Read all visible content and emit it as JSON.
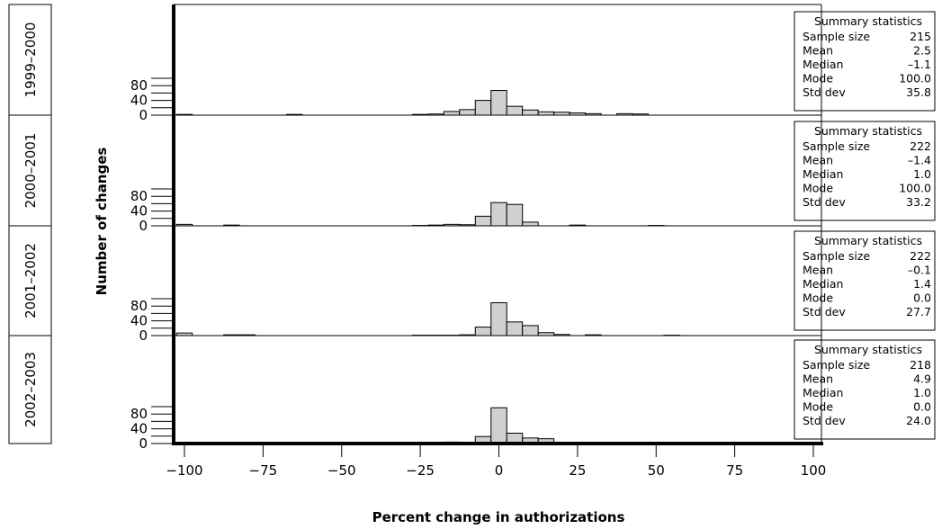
{
  "chart_data": {
    "type": "bar",
    "subtype": "stacked histogram panels",
    "xlabel": "Percent change in authorizations",
    "ylabel": "Number of changes",
    "xlim": [
      -105,
      105
    ],
    "ylim": [
      0,
      115
    ],
    "x_ticks": [
      -100,
      -75,
      -50,
      -25,
      0,
      25,
      50,
      75,
      100
    ],
    "x_tick_labels": [
      "−100",
      "−75",
      "−50",
      "−25",
      "0",
      "25",
      "50",
      "75",
      "100"
    ],
    "y_ticks": [
      0,
      40,
      80
    ],
    "y_minor_ticks": [
      20,
      60,
      100
    ],
    "bin_width": 5,
    "bar_color": "#d0d0d0",
    "bar_edge_color": "#000000",
    "grid": false,
    "panels": [
      {
        "label": "1999–2000",
        "bin_starts": [
          -102.5,
          -67.5,
          -27.5,
          -22.5,
          -17.5,
          -12.5,
          -7.5,
          -2.5,
          2.5,
          7.5,
          12.5,
          17.5,
          22.5,
          27.5,
          37.5,
          42.5
        ],
        "counts": [
          2,
          2,
          2,
          3,
          10,
          15,
          40,
          67,
          24,
          14,
          9,
          8,
          6,
          4,
          4,
          3
        ],
        "stats": {
          "title": "Summary statistics",
          "rows": [
            {
              "label": "Sample size",
              "value": "215"
            },
            {
              "label": "Mean",
              "value": "2.5"
            },
            {
              "label": "Median",
              "value": "–1.1"
            },
            {
              "label": "Mode",
              "value": "100.0"
            },
            {
              "label": "Std dev",
              "value": "35.8"
            }
          ]
        }
      },
      {
        "label": "2000–2001",
        "bin_starts": [
          -102.5,
          -87.5,
          -27.5,
          -22.5,
          -17.5,
          -12.5,
          -7.5,
          -2.5,
          2.5,
          7.5,
          22.5,
          47.5
        ],
        "counts": [
          4,
          2,
          1,
          2,
          4,
          3,
          26,
          63,
          58,
          10,
          2,
          1
        ],
        "stats": {
          "title": "Summary statistics",
          "rows": [
            {
              "label": "Sample size",
              "value": "222"
            },
            {
              "label": "Mean",
              "value": "–1.4"
            },
            {
              "label": "Median",
              "value": "1.0"
            },
            {
              "label": "Mode",
              "value": "100.0"
            },
            {
              "label": "Std dev",
              "value": "33.2"
            }
          ]
        }
      },
      {
        "label": "2001–2002",
        "bin_starts": [
          -102.5,
          -87.5,
          -82.5,
          -27.5,
          -22.5,
          -17.5,
          -12.5,
          -7.5,
          -2.5,
          2.5,
          7.5,
          12.5,
          17.5,
          27.5,
          52.5
        ],
        "counts": [
          7,
          2,
          2,
          1,
          1,
          1,
          2,
          23,
          89,
          37,
          27,
          8,
          3,
          2,
          1
        ],
        "stats": {
          "title": "Summary statistics",
          "rows": [
            {
              "label": "Sample size",
              "value": "222"
            },
            {
              "label": "Mean",
              "value": "–0.1"
            },
            {
              "label": "Median",
              "value": "1.4"
            },
            {
              "label": "Mode",
              "value": "0.0"
            },
            {
              "label": "Std dev",
              "value": "27.7"
            }
          ]
        }
      },
      {
        "label": "2002–2003",
        "bin_starts": [
          -17.5,
          -7.5,
          -2.5,
          2.5,
          7.5,
          12.5
        ],
        "counts": [
          4,
          19,
          97,
          28,
          15,
          13
        ],
        "stats": {
          "title": "Summary statistics",
          "rows": [
            {
              "label": "Sample size",
              "value": "218"
            },
            {
              "label": "Mean",
              "value": "4.9"
            },
            {
              "label": "Median",
              "value": "1.0"
            },
            {
              "label": "Mode",
              "value": "0.0"
            },
            {
              "label": "Std dev",
              "value": "24.0"
            }
          ]
        }
      }
    ]
  }
}
